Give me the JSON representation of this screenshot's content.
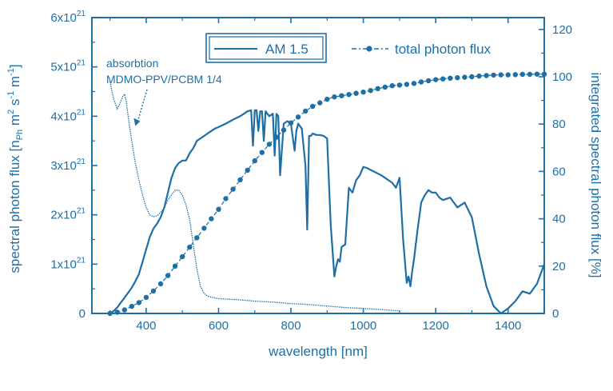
{
  "chart_data": {
    "type": "line",
    "title": "",
    "xlabel": "wavelength [nm]",
    "ylabel_left": "spectral photon flux [n_Ph m^2 s^-1 m^-1]",
    "ylabel_left_parts": {
      "pre": "spectral photon flux [n",
      "sub": "Ph",
      "mid1": " m",
      "sup1": "2",
      "mid2": " s",
      "sup2": "-1",
      "mid3": " m",
      "sup3": "-1",
      "post": "]"
    },
    "ylabel_right": "integrated spectral photon flux [%]",
    "xlim": [
      250,
      1500
    ],
    "ylim_left": [
      0,
      6
    ],
    "ylim_right": [
      0,
      125
    ],
    "y_left_unit_exponent": 21,
    "x_ticks": [
      "400",
      "600",
      "800",
      "1000",
      "1200",
      "1400"
    ],
    "x_tick_values": [
      400,
      600,
      800,
      1000,
      1200,
      1400
    ],
    "y_left_ticks": [
      {
        "value": 0,
        "mantissa": "0",
        "exp": ""
      },
      {
        "value": 1,
        "mantissa": "1x10",
        "exp": "21"
      },
      {
        "value": 2,
        "mantissa": "2x10",
        "exp": "21"
      },
      {
        "value": 3,
        "mantissa": "3x10",
        "exp": "21"
      },
      {
        "value": 4,
        "mantissa": "4x10",
        "exp": "21"
      },
      {
        "value": 5,
        "mantissa": "5x10",
        "exp": "21"
      },
      {
        "value": 6,
        "mantissa": "6x10",
        "exp": "21"
      }
    ],
    "y_right_ticks": [
      "0",
      "20",
      "40",
      "60",
      "80",
      "100",
      "120"
    ],
    "y_right_tick_values": [
      0,
      20,
      40,
      60,
      80,
      100,
      120
    ],
    "legend": {
      "placement": "top",
      "entries": [
        {
          "label": "AM 1.5",
          "style": "solid-boxed"
        },
        {
          "label": "total photon flux",
          "style": "dash-dot-marker"
        }
      ]
    },
    "annotation": {
      "lines": [
        "absorbtion",
        "MDMO-PPV/PCBM 1/4"
      ],
      "points_to": {
        "x": 370,
        "y": 3.8
      }
    },
    "series": [
      {
        "name": "AM 1.5",
        "axis": "left",
        "x": [
          300,
          310,
          320,
          330,
          340,
          350,
          360,
          370,
          380,
          390,
          400,
          410,
          420,
          430,
          440,
          450,
          460,
          470,
          480,
          490,
          500,
          510,
          520,
          530,
          540,
          550,
          560,
          570,
          580,
          590,
          600,
          620,
          640,
          660,
          680,
          690,
          695,
          700,
          705,
          710,
          715,
          720,
          725,
          730,
          740,
          750,
          755,
          760,
          765,
          770,
          780,
          790,
          800,
          810,
          815,
          820,
          830,
          840,
          845,
          850,
          855,
          860,
          870,
          880,
          890,
          900,
          910,
          920,
          925,
          930,
          935,
          940,
          950,
          960,
          970,
          980,
          990,
          1000,
          1010,
          1050,
          1080,
          1090,
          1100,
          1110,
          1120,
          1125,
          1130,
          1135,
          1140,
          1150,
          1160,
          1170,
          1180,
          1190,
          1200,
          1210,
          1220,
          1240,
          1260,
          1280,
          1300,
          1320,
          1340,
          1360,
          1380,
          1390,
          1400,
          1420,
          1440,
          1460,
          1480,
          1500
        ],
        "y": [
          0.0,
          0.05,
          0.12,
          0.22,
          0.32,
          0.42,
          0.52,
          0.65,
          0.8,
          1.05,
          1.3,
          1.55,
          1.72,
          1.82,
          1.95,
          2.15,
          2.45,
          2.75,
          2.95,
          3.05,
          3.1,
          3.1,
          3.25,
          3.35,
          3.5,
          3.55,
          3.6,
          3.65,
          3.7,
          3.75,
          3.78,
          3.85,
          3.93,
          4.0,
          4.1,
          4.12,
          3.4,
          4.12,
          4.12,
          3.7,
          4.1,
          4.1,
          3.5,
          4.1,
          4.0,
          4.05,
          3.2,
          4.05,
          4.0,
          2.8,
          3.85,
          3.9,
          3.85,
          3.3,
          3.7,
          3.85,
          3.75,
          3.0,
          1.7,
          3.6,
          3.6,
          3.65,
          3.62,
          3.62,
          3.6,
          3.55,
          1.8,
          0.75,
          0.95,
          1.1,
          1.05,
          1.35,
          1.4,
          2.55,
          2.45,
          2.7,
          2.8,
          2.97,
          2.95,
          2.8,
          2.65,
          2.55,
          2.75,
          1.5,
          0.62,
          0.75,
          0.55,
          0.85,
          1.1,
          1.7,
          2.25,
          2.4,
          2.5,
          2.45,
          2.45,
          2.35,
          2.3,
          2.35,
          2.15,
          2.25,
          1.95,
          1.2,
          0.55,
          0.15,
          0.0,
          0.05,
          0.1,
          0.25,
          0.45,
          0.4,
          0.6,
          1.0
        ]
      },
      {
        "name": "total photon flux",
        "axis": "right",
        "x": [
          300,
          320,
          340,
          360,
          380,
          400,
          420,
          440,
          460,
          480,
          500,
          520,
          540,
          560,
          580,
          600,
          620,
          640,
          660,
          680,
          700,
          720,
          740,
          760,
          780,
          800,
          820,
          840,
          860,
          880,
          900,
          920,
          940,
          960,
          980,
          1000,
          1020,
          1040,
          1060,
          1080,
          1100,
          1120,
          1140,
          1160,
          1180,
          1200,
          1220,
          1240,
          1260,
          1280,
          1300,
          1320,
          1340,
          1360,
          1380,
          1400,
          1420,
          1440,
          1460,
          1480,
          1500
        ],
        "y": [
          0,
          0.5,
          1.5,
          3.0,
          4.6,
          6.8,
          9.5,
          12.5,
          16,
          20,
          24,
          28,
          32,
          36,
          40,
          44,
          48.5,
          52.5,
          56.5,
          60.5,
          64.5,
          68,
          71.5,
          74.5,
          77.5,
          80.5,
          83,
          85.5,
          87.5,
          89,
          90.5,
          91.5,
          92,
          92.5,
          93,
          93.5,
          94.2,
          95,
          95.6,
          96.2,
          96.5,
          96.8,
          97.2,
          97.8,
          98.3,
          98.8,
          99.1,
          99.4,
          99.6,
          99.8,
          100,
          100.3,
          100.5,
          100.7,
          100.8,
          100.8,
          100.9,
          101.0,
          101.0,
          101.1,
          101.1
        ]
      },
      {
        "name": "absorbtion MDMO-PPV/PCBM 1/4",
        "axis": "left",
        "x": [
          300,
          310,
          320,
          330,
          335,
          340,
          345,
          350,
          360,
          370,
          380,
          390,
          400,
          410,
          420,
          430,
          440,
          450,
          460,
          470,
          480,
          490,
          500,
          510,
          520,
          530,
          540,
          550,
          560,
          570,
          580,
          600,
          650,
          700,
          750,
          800,
          850,
          900,
          950,
          1000,
          1050,
          1100
        ],
        "y": [
          4.7,
          4.35,
          4.15,
          4.3,
          4.4,
          4.45,
          4.3,
          4.0,
          3.5,
          3.05,
          2.7,
          2.4,
          2.15,
          2.0,
          1.96,
          1.98,
          2.05,
          2.15,
          2.3,
          2.4,
          2.5,
          2.5,
          2.4,
          2.2,
          1.9,
          1.4,
          0.9,
          0.55,
          0.4,
          0.35,
          0.33,
          0.3,
          0.28,
          0.25,
          0.23,
          0.2,
          0.18,
          0.15,
          0.12,
          0.1,
          0.08,
          0.05
        ]
      }
    ],
    "colors": {
      "ink": "#1d6fa5",
      "paper": "#ffffff"
    }
  }
}
